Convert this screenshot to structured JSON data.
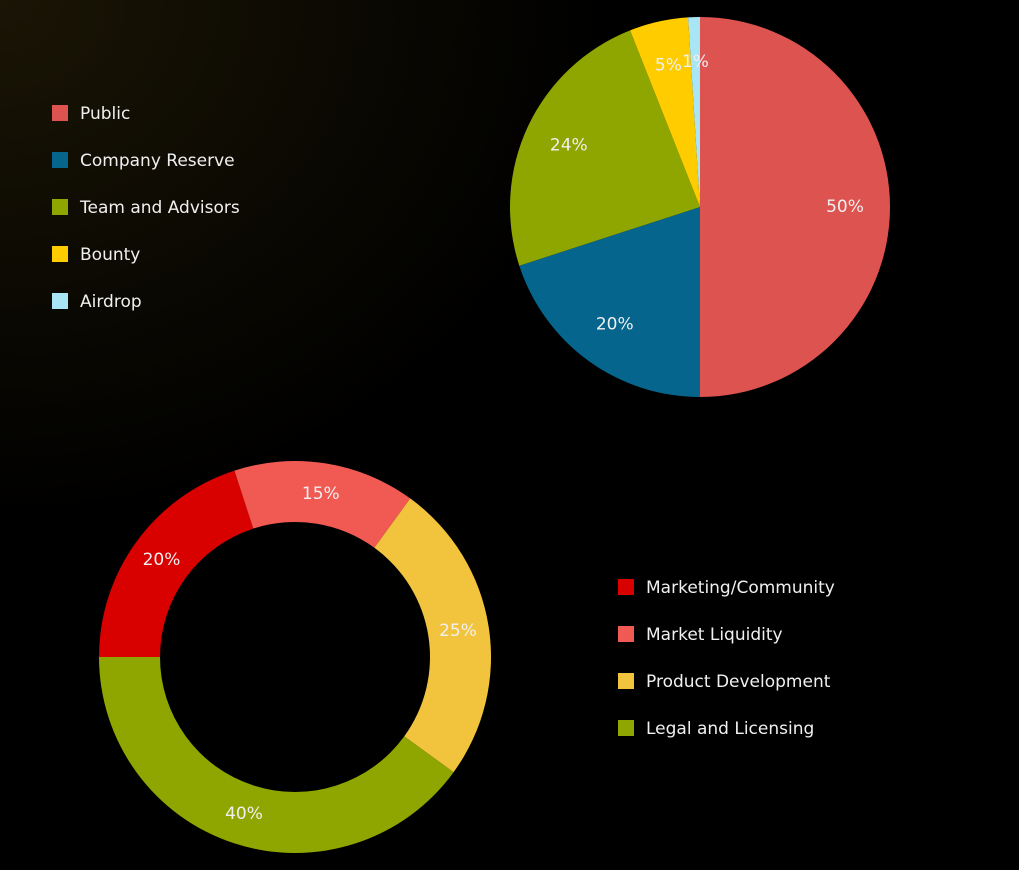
{
  "chart_data": [
    {
      "type": "pie",
      "categories": [
        "Public",
        "Company Reserve",
        "Team and Advisors",
        "Bounty",
        "Airdrop"
      ],
      "values": [
        50,
        20,
        24,
        5,
        1
      ],
      "value_labels": [
        "50%",
        "20%",
        "24%",
        "5%",
        "1%"
      ],
      "colors": [
        "#dd5350",
        "#05658d",
        "#8fa600",
        "#ffcc00",
        "#a8e6f5"
      ]
    },
    {
      "type": "donut",
      "categories": [
        "Marketing/Community",
        "Market Liquidity",
        "Product Development",
        "Legal and Licensing"
      ],
      "values": [
        20,
        15,
        25,
        40
      ],
      "value_labels": [
        "20%",
        "15%",
        "25%",
        "40%"
      ],
      "colors": [
        "#d90000",
        "#f05a52",
        "#f2c43d",
        "#8fa600"
      ]
    }
  ]
}
